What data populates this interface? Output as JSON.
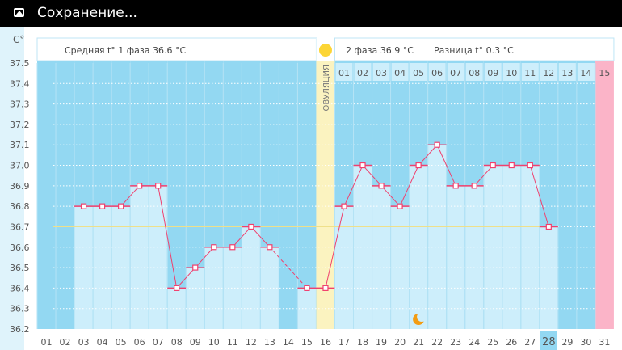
{
  "status_bar": {
    "title": "Сохранение...",
    "icon": "image-icon"
  },
  "chart_data": {
    "type": "line",
    "unit_label": "C°",
    "ylim": [
      36.2,
      37.5
    ],
    "y_ticks": [
      "37.5",
      "37.4",
      "37.3",
      "37.2",
      "37.1",
      "37.0",
      "36.9",
      "36.8",
      "36.7",
      "36.6",
      "36.5",
      "36.4",
      "36.3",
      "36.2"
    ],
    "x_labels": [
      "01",
      "02",
      "03",
      "04",
      "05",
      "06",
      "07",
      "08",
      "09",
      "10",
      "11",
      "12",
      "13",
      "14",
      "15",
      "16",
      "17",
      "18",
      "19",
      "20",
      "21",
      "22",
      "23",
      "24",
      "25",
      "26",
      "27",
      "28",
      "29",
      "30",
      "31"
    ],
    "phase2_labels": [
      "01",
      "02",
      "03",
      "04",
      "05",
      "06",
      "07",
      "08",
      "09",
      "10",
      "11",
      "12",
      "13",
      "14",
      "15"
    ],
    "values": [
      null,
      null,
      36.8,
      36.8,
      36.8,
      36.9,
      36.9,
      36.4,
      36.5,
      36.6,
      36.6,
      36.7,
      36.6,
      null,
      36.4,
      36.4,
      36.8,
      37.0,
      36.9,
      36.8,
      37.0,
      37.1,
      36.9,
      36.9,
      37.0,
      37.0,
      37.0,
      36.7,
      null,
      null,
      null
    ],
    "coverline": 36.7,
    "ovulation_day": 16,
    "ovulation_label": "ОВУЛЯЦИЯ",
    "current_day": 28,
    "moon_day": 21,
    "phase1_text": "Средняя t° 1 фаза 36.6 °C",
    "phase2_text": "2 фаза 36.9 °C",
    "diff_text": "Разница t° 0.3 °C",
    "colors": {
      "dark": "#93d8f2",
      "light": "#cdeefb",
      "pink": "#fbb4c8",
      "yellow": "#fbf3c0",
      "line": "#f0406e"
    }
  }
}
